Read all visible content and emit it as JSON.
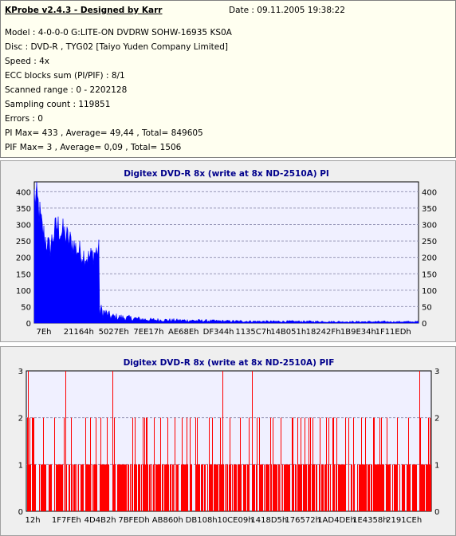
{
  "info": {
    "title": "KProbe v2.4.3 - Designed by Karr",
    "date": "Date : 09.11.2005 19:38:22",
    "lines": [
      "Model : 4-0-0-0 G:LITE-ON DVDRW SOHW-16935 KS0A",
      "Disc : DVD-R , TYG02 [Taiyo Yuden Company Limited]",
      "Speed : 4x",
      "ECC blocks sum (PI/PIF) : 8/1",
      "Scanned range : 0 - 2202128",
      "Sampling count : 119851",
      "Errors : 0",
      "PI Max= 433 , Average= 49,44 , Total= 849605",
      "PIF Max= 3 , Average= 0,09 , Total= 1506"
    ]
  },
  "colors": {
    "pi": "#0000ff",
    "pif": "#ff0000",
    "plot_bg": "#f0f0ff",
    "grid": "#9898b8"
  },
  "chart_data": [
    {
      "type": "area",
      "title": "Digitex DVD-R 8x (write at 8x ND-2510A) PI",
      "ylim": [
        0,
        430
      ],
      "yticks": [
        0,
        50,
        100,
        150,
        200,
        250,
        300,
        350,
        400
      ],
      "xticks": [
        "7Eh",
        "21164h",
        "5027Eh",
        "7EE17h",
        "AE68Eh",
        "DF344h",
        "1135C7h",
        "14B051h",
        "18242Fh",
        "1B9E34h",
        "1F11EDh"
      ],
      "grid": true,
      "series_profile": [
        [
          0,
          430
        ],
        [
          0.01,
          400
        ],
        [
          0.02,
          320
        ],
        [
          0.03,
          280
        ],
        [
          0.04,
          250
        ],
        [
          0.05,
          300
        ],
        [
          0.06,
          330
        ],
        [
          0.07,
          310
        ],
        [
          0.08,
          300
        ],
        [
          0.09,
          280
        ],
        [
          0.1,
          270
        ],
        [
          0.11,
          250
        ],
        [
          0.12,
          240
        ],
        [
          0.13,
          230
        ],
        [
          0.14,
          220
        ],
        [
          0.15,
          230
        ],
        [
          0.16,
          240
        ],
        [
          0.165,
          245
        ],
        [
          0.17,
          40
        ],
        [
          0.2,
          20
        ],
        [
          0.25,
          15
        ],
        [
          0.3,
          10
        ],
        [
          0.4,
          8
        ],
        [
          0.5,
          6
        ],
        [
          0.6,
          5
        ],
        [
          0.7,
          5
        ],
        [
          0.8,
          4
        ],
        [
          0.9,
          4
        ],
        [
          1.0,
          4
        ]
      ]
    },
    {
      "type": "bar",
      "title": "Digitex DVD-R 8x (write at 8x ND-2510A) PIF",
      "ylim": [
        0,
        3
      ],
      "yticks": [
        0,
        1,
        2,
        3
      ],
      "xticks": [
        "12h",
        "1F7FEh",
        "4D4B2h",
        "7BFEDh",
        "AB860h",
        "DB108h",
        "10CE09h",
        "1418D5h",
        "176572h",
        "1AD4DEh",
        "1E4358h",
        "2191CEh"
      ],
      "grid": true,
      "max_value": 3,
      "total": 1506
    }
  ]
}
